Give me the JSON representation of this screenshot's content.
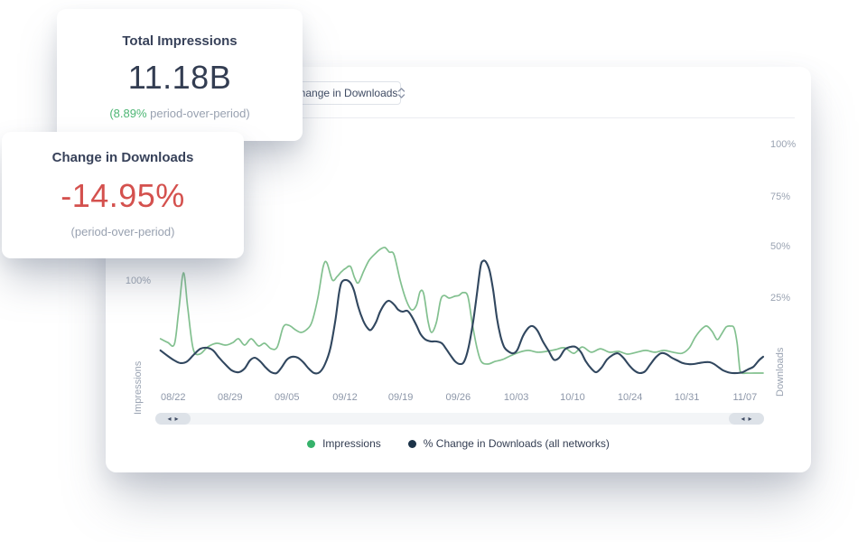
{
  "cards": [
    {
      "title": "Total Impressions",
      "value": "11.18B",
      "sub_highlight": "(8.89%",
      "sub_rest": " period-over-period)"
    },
    {
      "title": "Change in Downloads",
      "value": "-14.95%",
      "sub": "(period-over-period)"
    }
  ],
  "panel": {
    "dropdown": {
      "value": "Change in Downloads"
    },
    "left_axis": {
      "label": "Impressions",
      "tick": "100%"
    },
    "right_axis": {
      "label": "Downloads",
      "ticks": [
        "100%",
        "75%",
        "50%",
        "25%"
      ]
    },
    "x_ticks": [
      "08/22",
      "08/29",
      "09/05",
      "09/12",
      "09/19",
      "09/26",
      "10/03",
      "10/10",
      "10/24",
      "10/31",
      "11/07"
    ],
    "legend": [
      {
        "label": "Impressions",
        "color": "#36b26b"
      },
      {
        "label": "% Change in Downloads (all networks)",
        "color": "#1c3349"
      }
    ],
    "scrollbar": {
      "left_arrow_glyph": "◂",
      "right_arrow_glyph": "▸"
    }
  },
  "chart_data": {
    "type": "line",
    "title": "",
    "xlabel": "",
    "x_tick_labels": [
      "08/22",
      "08/29",
      "09/05",
      "09/12",
      "09/19",
      "09/26",
      "10/03",
      "10/10",
      "10/24",
      "10/31",
      "11/07"
    ],
    "x_note": "weekly ticks, 10/17 label omitted between 10/10 and 10/24",
    "y_axis_right": {
      "label": "Downloads",
      "tick_labels": [
        "100%",
        "75%",
        "50%",
        "25%"
      ],
      "units": "percent",
      "visible_range": [
        -15,
        107
      ]
    },
    "y_axis_left": {
      "label": "Impressions",
      "tick_labels": [
        "100%"
      ],
      "note": "left-axis 100% tick sits at ~33 on the right-axis percent scale"
    },
    "grid": false,
    "legend_position": "bottom-center",
    "series": [
      {
        "name": "Impressions",
        "axis": "left",
        "color": "#82c08f",
        "points_note": "x = fraction of plot width (0-1), y = percent on right-axis scale as drawn",
        "points": [
          [
            0.004,
            5.3
          ],
          [
            0.016,
            3.5
          ],
          [
            0.027,
            2.7
          ],
          [
            0.034,
            18.6
          ],
          [
            0.042,
            37.6
          ],
          [
            0.049,
            20.8
          ],
          [
            0.058,
            0.4
          ],
          [
            0.069,
            -2.2
          ],
          [
            0.082,
            1.3
          ],
          [
            0.097,
            3.1
          ],
          [
            0.112,
            2.2
          ],
          [
            0.124,
            3.5
          ],
          [
            0.133,
            5.3
          ],
          [
            0.143,
            2.2
          ],
          [
            0.154,
            5.3
          ],
          [
            0.166,
            1.8
          ],
          [
            0.176,
            3.1
          ],
          [
            0.187,
            0.4
          ],
          [
            0.197,
            1.3
          ],
          [
            0.207,
            11.1
          ],
          [
            0.216,
            11.9
          ],
          [
            0.227,
            9.7
          ],
          [
            0.236,
            8.4
          ],
          [
            0.245,
            9.7
          ],
          [
            0.254,
            13.3
          ],
          [
            0.264,
            25.2
          ],
          [
            0.273,
            40.7
          ],
          [
            0.279,
            42.5
          ],
          [
            0.288,
            34.1
          ],
          [
            0.296,
            35.8
          ],
          [
            0.303,
            38.1
          ],
          [
            0.31,
            39.8
          ],
          [
            0.318,
            40.7
          ],
          [
            0.325,
            35.0
          ],
          [
            0.331,
            32.7
          ],
          [
            0.34,
            38.5
          ],
          [
            0.349,
            43.8
          ],
          [
            0.36,
            47.3
          ],
          [
            0.367,
            49.1
          ],
          [
            0.375,
            50.0
          ],
          [
            0.382,
            47.8
          ],
          [
            0.39,
            46.5
          ],
          [
            0.4,
            34.1
          ],
          [
            0.41,
            24.3
          ],
          [
            0.419,
            19.5
          ],
          [
            0.427,
            21.7
          ],
          [
            0.433,
            28.3
          ],
          [
            0.439,
            27.4
          ],
          [
            0.446,
            14.2
          ],
          [
            0.452,
            8.4
          ],
          [
            0.46,
            13.3
          ],
          [
            0.467,
            24.3
          ],
          [
            0.473,
            26.5
          ],
          [
            0.481,
            25.2
          ],
          [
            0.49,
            26.1
          ],
          [
            0.497,
            26.5
          ],
          [
            0.504,
            27.9
          ],
          [
            0.512,
            26.1
          ],
          [
            0.519,
            13.3
          ],
          [
            0.527,
            0.9
          ],
          [
            0.534,
            -5.8
          ],
          [
            0.545,
            -7.1
          ],
          [
            0.557,
            -5.8
          ],
          [
            0.569,
            -4.9
          ],
          [
            0.582,
            -3.1
          ],
          [
            0.597,
            -1.3
          ],
          [
            0.612,
            -0.4
          ],
          [
            0.627,
            -1.3
          ],
          [
            0.642,
            -0.9
          ],
          [
            0.657,
            0.0
          ],
          [
            0.672,
            0.9
          ],
          [
            0.687,
            -1.8
          ],
          [
            0.701,
            1.3
          ],
          [
            0.716,
            -1.3
          ],
          [
            0.731,
            0.4
          ],
          [
            0.746,
            -1.3
          ],
          [
            0.761,
            -0.9
          ],
          [
            0.776,
            -2.2
          ],
          [
            0.791,
            -1.3
          ],
          [
            0.806,
            -0.4
          ],
          [
            0.821,
            -1.3
          ],
          [
            0.836,
            -0.4
          ],
          [
            0.851,
            -1.3
          ],
          [
            0.866,
            -1.8
          ],
          [
            0.878,
            0.9
          ],
          [
            0.888,
            6.2
          ],
          [
            0.899,
            10.2
          ],
          [
            0.907,
            11.5
          ],
          [
            0.916,
            8.8
          ],
          [
            0.924,
            4.9
          ],
          [
            0.931,
            7.5
          ],
          [
            0.939,
            11.1
          ],
          [
            0.946,
            11.5
          ],
          [
            0.952,
            10.6
          ],
          [
            0.957,
            3.1
          ],
          [
            0.96,
            -5.8
          ],
          [
            0.963,
            -11.1
          ],
          [
            0.975,
            -11.5
          ],
          [
            0.99,
            -11.5
          ],
          [
            1.0,
            -11.5
          ]
        ]
      },
      {
        "name": "% Change in Downloads (all networks)",
        "axis": "right",
        "color": "#31475f",
        "points_note": "x = fraction of plot width (0-1), y = percent change",
        "points": [
          [
            0.004,
            -0.4
          ],
          [
            0.016,
            -3.1
          ],
          [
            0.027,
            -5.3
          ],
          [
            0.037,
            -6.6
          ],
          [
            0.048,
            -5.8
          ],
          [
            0.06,
            -2.2
          ],
          [
            0.07,
            0.4
          ],
          [
            0.081,
            0.9
          ],
          [
            0.091,
            -0.4
          ],
          [
            0.101,
            -4.0
          ],
          [
            0.112,
            -7.5
          ],
          [
            0.122,
            -10.2
          ],
          [
            0.133,
            -11.1
          ],
          [
            0.143,
            -9.3
          ],
          [
            0.152,
            -5.3
          ],
          [
            0.16,
            -4.0
          ],
          [
            0.169,
            -5.8
          ],
          [
            0.178,
            -8.8
          ],
          [
            0.187,
            -11.1
          ],
          [
            0.196,
            -11.5
          ],
          [
            0.204,
            -8.8
          ],
          [
            0.213,
            -4.9
          ],
          [
            0.222,
            -3.5
          ],
          [
            0.231,
            -4.0
          ],
          [
            0.24,
            -6.2
          ],
          [
            0.249,
            -9.3
          ],
          [
            0.258,
            -11.5
          ],
          [
            0.267,
            -11.1
          ],
          [
            0.276,
            -7.1
          ],
          [
            0.285,
            0.9
          ],
          [
            0.293,
            14.2
          ],
          [
            0.299,
            27.4
          ],
          [
            0.303,
            32.7
          ],
          [
            0.31,
            34.1
          ],
          [
            0.318,
            32.7
          ],
          [
            0.324,
            28.8
          ],
          [
            0.331,
            20.8
          ],
          [
            0.339,
            14.2
          ],
          [
            0.346,
            10.6
          ],
          [
            0.352,
            9.7
          ],
          [
            0.36,
            13.3
          ],
          [
            0.367,
            18.6
          ],
          [
            0.375,
            22.6
          ],
          [
            0.382,
            23.9
          ],
          [
            0.39,
            22.1
          ],
          [
            0.397,
            19.5
          ],
          [
            0.404,
            18.6
          ],
          [
            0.412,
            19.0
          ],
          [
            0.419,
            16.4
          ],
          [
            0.427,
            11.9
          ],
          [
            0.434,
            7.5
          ],
          [
            0.442,
            4.9
          ],
          [
            0.451,
            4.0
          ],
          [
            0.46,
            4.0
          ],
          [
            0.469,
            3.1
          ],
          [
            0.476,
            0.4
          ],
          [
            0.484,
            -3.1
          ],
          [
            0.491,
            -5.8
          ],
          [
            0.499,
            -7.1
          ],
          [
            0.506,
            -5.8
          ],
          [
            0.513,
            0.9
          ],
          [
            0.521,
            14.2
          ],
          [
            0.527,
            27.4
          ],
          [
            0.533,
            40.7
          ],
          [
            0.537,
            43.4
          ],
          [
            0.542,
            42.9
          ],
          [
            0.548,
            38.5
          ],
          [
            0.554,
            28.8
          ],
          [
            0.56,
            15.5
          ],
          [
            0.566,
            6.6
          ],
          [
            0.572,
            1.3
          ],
          [
            0.579,
            -0.9
          ],
          [
            0.587,
            -1.8
          ],
          [
            0.594,
            0.0
          ],
          [
            0.603,
            6.6
          ],
          [
            0.612,
            10.6
          ],
          [
            0.619,
            11.5
          ],
          [
            0.627,
            9.3
          ],
          [
            0.636,
            4.0
          ],
          [
            0.645,
            -0.4
          ],
          [
            0.654,
            -4.9
          ],
          [
            0.663,
            -4.0
          ],
          [
            0.672,
            0.0
          ],
          [
            0.681,
            1.3
          ],
          [
            0.69,
            1.3
          ],
          [
            0.699,
            -1.3
          ],
          [
            0.707,
            -5.8
          ],
          [
            0.716,
            -9.3
          ],
          [
            0.724,
            -11.1
          ],
          [
            0.733,
            -8.8
          ],
          [
            0.742,
            -4.9
          ],
          [
            0.751,
            -2.7
          ],
          [
            0.76,
            -1.8
          ],
          [
            0.769,
            -4.0
          ],
          [
            0.778,
            -7.5
          ],
          [
            0.787,
            -10.2
          ],
          [
            0.796,
            -11.5
          ],
          [
            0.805,
            -10.6
          ],
          [
            0.813,
            -7.5
          ],
          [
            0.822,
            -4.0
          ],
          [
            0.831,
            -1.8
          ],
          [
            0.84,
            -2.2
          ],
          [
            0.849,
            -4.0
          ],
          [
            0.858,
            -5.3
          ],
          [
            0.867,
            -6.6
          ],
          [
            0.876,
            -7.1
          ],
          [
            0.885,
            -7.1
          ],
          [
            0.894,
            -6.6
          ],
          [
            0.903,
            -6.2
          ],
          [
            0.912,
            -6.2
          ],
          [
            0.919,
            -7.1
          ],
          [
            0.927,
            -8.8
          ],
          [
            0.934,
            -10.2
          ],
          [
            0.942,
            -11.1
          ],
          [
            0.949,
            -11.5
          ],
          [
            0.957,
            -11.5
          ],
          [
            0.966,
            -11.1
          ],
          [
            0.975,
            -9.7
          ],
          [
            0.984,
            -8.4
          ],
          [
            0.993,
            -5.3
          ],
          [
            1.0,
            -3.5
          ]
        ]
      }
    ]
  }
}
